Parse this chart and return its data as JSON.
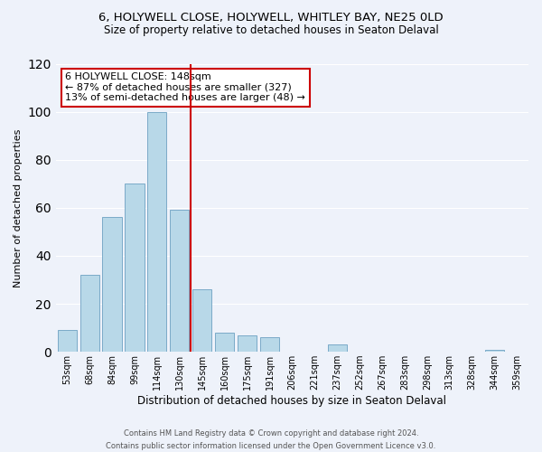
{
  "title": "6, HOLYWELL CLOSE, HOLYWELL, WHITLEY BAY, NE25 0LD",
  "subtitle": "Size of property relative to detached houses in Seaton Delaval",
  "xlabel": "Distribution of detached houses by size in Seaton Delaval",
  "ylabel": "Number of detached properties",
  "bar_labels": [
    "53sqm",
    "68sqm",
    "84sqm",
    "99sqm",
    "114sqm",
    "130sqm",
    "145sqm",
    "160sqm",
    "175sqm",
    "191sqm",
    "206sqm",
    "221sqm",
    "237sqm",
    "252sqm",
    "267sqm",
    "283sqm",
    "298sqm",
    "313sqm",
    "328sqm",
    "344sqm",
    "359sqm"
  ],
  "bar_values": [
    9,
    32,
    56,
    70,
    100,
    59,
    26,
    8,
    7,
    6,
    0,
    0,
    3,
    0,
    0,
    0,
    0,
    0,
    0,
    1,
    0
  ],
  "bar_color": "#b8d8e8",
  "bar_edge_color": "#7baac8",
  "reference_line_color": "#cc0000",
  "annotation_text": "6 HOLYWELL CLOSE: 148sqm\n← 87% of detached houses are smaller (327)\n13% of semi-detached houses are larger (48) →",
  "annotation_box_color": "#cc0000",
  "ylim": [
    0,
    120
  ],
  "yticks": [
    0,
    20,
    40,
    60,
    80,
    100,
    120
  ],
  "background_color": "#eef2fa",
  "footer_line1": "Contains HM Land Registry data © Crown copyright and database right 2024.",
  "footer_line2": "Contains public sector information licensed under the Open Government Licence v3.0.",
  "title_fontsize": 9.5,
  "subtitle_fontsize": 8.5,
  "xlabel_fontsize": 8.5,
  "ylabel_fontsize": 8,
  "annotation_fontsize": 8,
  "tick_fontsize": 7,
  "footer_fontsize": 6
}
